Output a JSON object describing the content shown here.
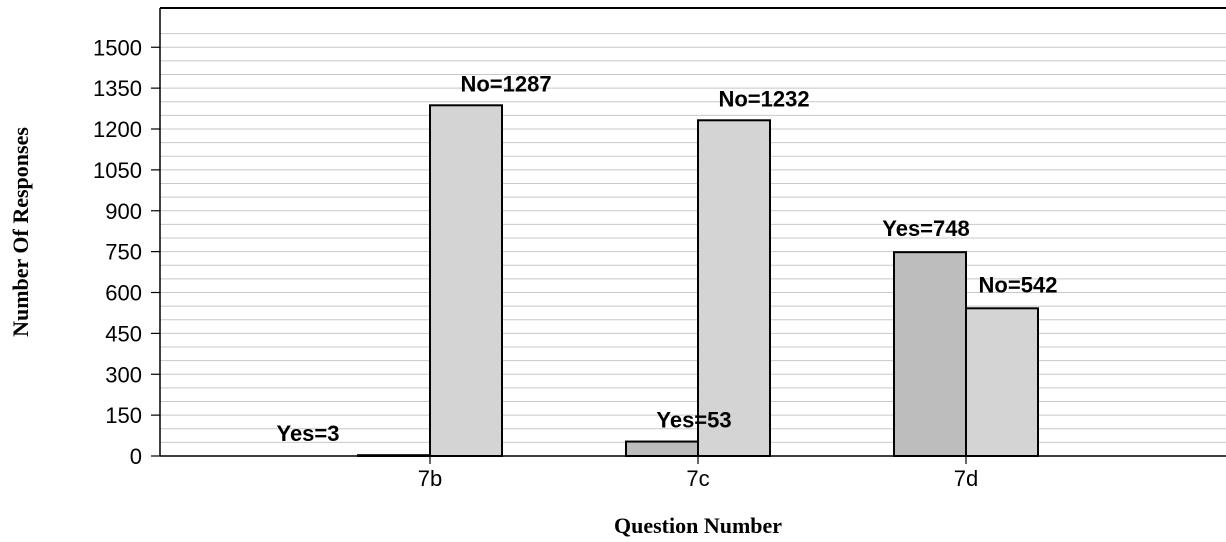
{
  "chart_data": {
    "type": "bar",
    "categories": [
      "7b",
      "7c",
      "7d"
    ],
    "series": [
      {
        "values": [
          3,
          53,
          748
        ],
        "color": "#bdbdbd"
      },
      {
        "values": [
          1287,
          1232,
          542
        ],
        "color": "#d4d4d4"
      }
    ],
    "data_labels": [
      [
        "Yes=3",
        "Yes=53",
        "Yes=748"
      ],
      [
        "No=1287",
        "No=1232",
        "No=542"
      ]
    ],
    "xlabel": "Question Number",
    "ylabel": "Number Of Responses",
    "ylim": [
      0,
      1560
    ],
    "yticks": [
      0,
      150,
      300,
      450,
      600,
      750,
      900,
      1050,
      1200,
      1350,
      1500
    ],
    "minor_gridline_step": 50,
    "grid": true,
    "colors": {
      "gridline": "#c8c8c8",
      "axis": "#000000"
    }
  }
}
